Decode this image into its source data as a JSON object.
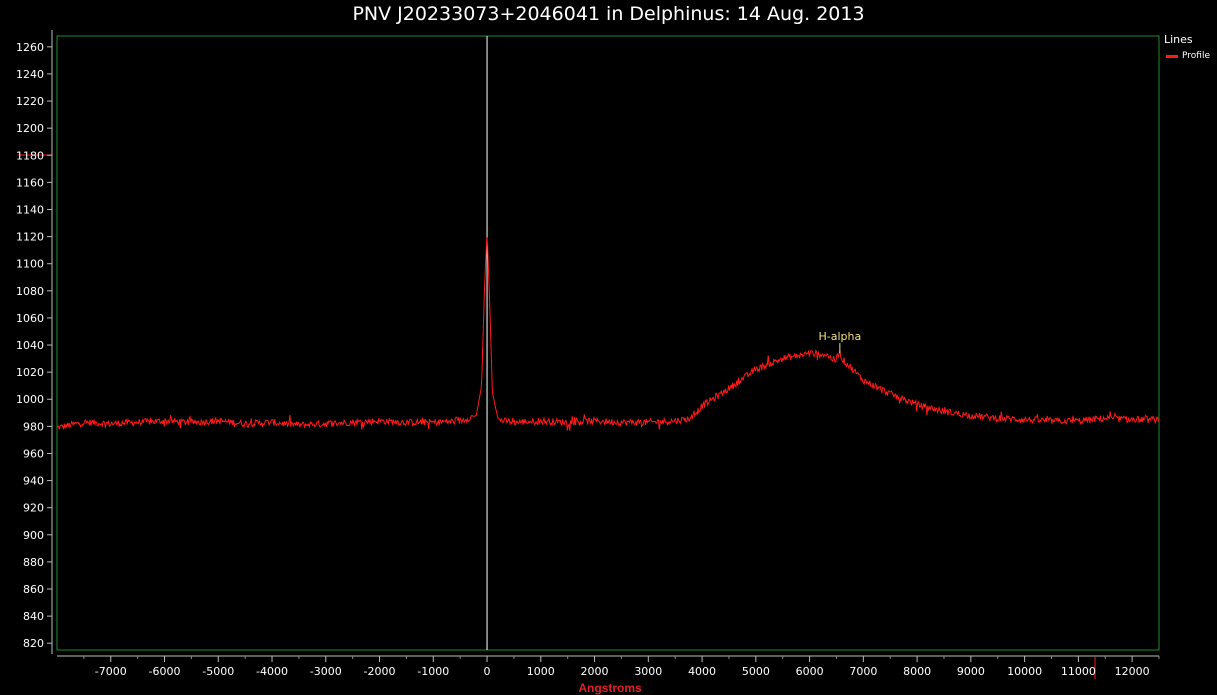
{
  "colors": {
    "background": "#000000",
    "plot_border": "#1f8a2a",
    "series": "#ff1a1a",
    "marker_line": "#ffffff",
    "axis_text": "#ffffff",
    "xlabel": "#e0202a",
    "annotation": "#f2e27a"
  },
  "chart_data": {
    "type": "line",
    "title": "PNV J20233073+2046041 in Delphinus: 14 Aug. 2013",
    "xlabel": "Angstroms",
    "ylabel": "",
    "xlim": [
      -8000,
      12500
    ],
    "ylim": [
      815,
      1268
    ],
    "x_ticks": [
      -7000,
      -6000,
      -5000,
      -4000,
      -3000,
      -2000,
      -1000,
      0,
      1000,
      2000,
      3000,
      4000,
      5000,
      6000,
      7000,
      8000,
      9000,
      10000,
      11000,
      12000
    ],
    "y_ticks": [
      820,
      840,
      860,
      880,
      900,
      920,
      940,
      960,
      980,
      1000,
      1020,
      1040,
      1060,
      1080,
      1100,
      1120,
      1140,
      1160,
      1180,
      1200,
      1220,
      1240,
      1260
    ],
    "grid": false,
    "legend": {
      "title": "Lines",
      "position": "top-right outside",
      "entries": [
        "Profile"
      ]
    },
    "vertical_marker_x": 0,
    "series": [
      {
        "name": "Profile",
        "x": [
          -8000,
          -7500,
          -7000,
          -6500,
          -6000,
          -5500,
          -5000,
          -4500,
          -4000,
          -3500,
          -3000,
          -2500,
          -2000,
          -1500,
          -1000,
          -500,
          -200,
          -100,
          -50,
          0,
          50,
          100,
          200,
          300,
          500,
          1000,
          1500,
          2000,
          2500,
          3000,
          3500,
          3800,
          4000,
          4500,
          5000,
          5500,
          6000,
          6300,
          6500,
          6550,
          6600,
          7000,
          7500,
          8000,
          8500,
          9000,
          9500,
          10000,
          10500,
          11000,
          11500,
          12000,
          12500
        ],
        "values": [
          979,
          983,
          982,
          983,
          984,
          983,
          984,
          982,
          983,
          981,
          982,
          983,
          984,
          983,
          983,
          984,
          988,
          1010,
          1080,
          1124,
          1070,
          1005,
          986,
          984,
          983,
          984,
          983,
          984,
          983,
          983,
          984,
          986,
          995,
          1008,
          1022,
          1030,
          1034,
          1033,
          1028,
          1036,
          1030,
          1014,
          1004,
          996,
          991,
          988,
          986,
          985,
          984,
          984,
          986,
          985,
          985
        ]
      }
    ],
    "annotations": [
      {
        "text": "H-alpha",
        "x": 6563,
        "y": 1037
      }
    ]
  }
}
